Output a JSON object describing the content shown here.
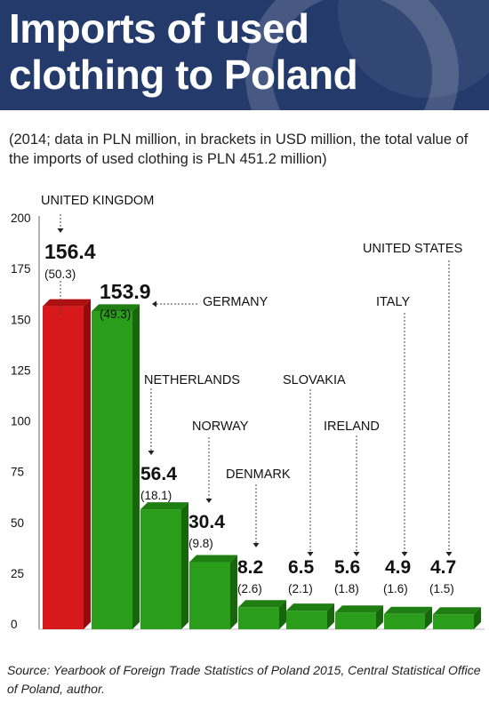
{
  "title": "Imports of used clothing to Poland",
  "subtitle": "(2014; data in PLN million, in brackets in USD million, the total value of the imports of used clothing is PLN 451.2 million)",
  "source": "Source: Yearbook of Foreign Trade Statistics of Poland 2015, Central Statistical Office of Poland, author.",
  "chart_data": {
    "type": "bar",
    "title": "Imports of used clothing to Poland",
    "ylim": [
      0,
      200
    ],
    "yticks": [
      0,
      25,
      50,
      75,
      100,
      125,
      150,
      175,
      200
    ],
    "grid": false,
    "categories": [
      "UNITED KINGDOM",
      "GERMANY",
      "NETHERLANDS",
      "NORWAY",
      "DENMARK",
      "SLOVAKIA",
      "IRELAND",
      "ITALY",
      "UNITED STATES"
    ],
    "values": [
      156.4,
      153.9,
      56.4,
      30.4,
      8.2,
      6.5,
      5.6,
      4.9,
      4.7
    ],
    "value_labels": [
      "156.4",
      "153.9",
      "56.4",
      "30.4",
      "8.2",
      "6.5",
      "5.6",
      "4.9",
      "4.7"
    ],
    "usd_labels": [
      "(50.3)",
      "(49.3)",
      "(18.1)",
      "(9.8)",
      "(2.6)",
      "(2.1)",
      "(1.8)",
      "(1.6)",
      "(1.5)"
    ],
    "usd_values": [
      50.3,
      49.3,
      18.1,
      9.8,
      2.6,
      2.1,
      1.8,
      1.6,
      1.5
    ],
    "colors": {
      "highlight_front": "#d7191c",
      "highlight_top": "#b00f12",
      "highlight_side": "#930b0e",
      "bar_front": "#2a9d1a",
      "bar_top": "#1f7e12",
      "bar_side": "#17660c",
      "header_bg": "#243a6b"
    }
  }
}
